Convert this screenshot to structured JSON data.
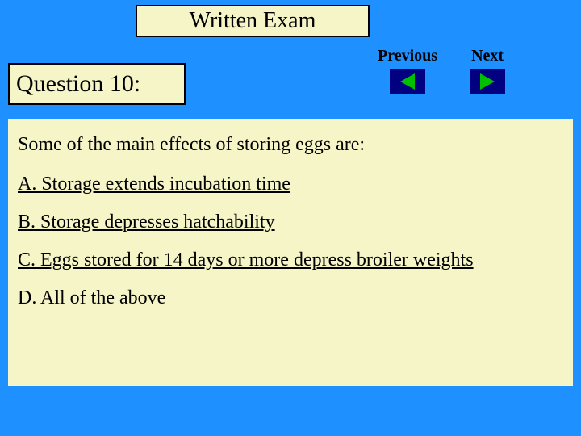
{
  "colors": {
    "background": "#1e90ff",
    "box_fill": "#f5f5c8",
    "box_border": "#000000",
    "nav_button_bg": "#000080",
    "arrow_color": "#00c000",
    "text_color": "#000000"
  },
  "title": "Written Exam",
  "question_label": "Question 10:",
  "nav": {
    "previous": "Previous",
    "next": "Next"
  },
  "question": {
    "prompt": "Some of the main effects of storing eggs are:",
    "options": [
      "A. Storage extends incubation time",
      "B. Storage depresses hatchability",
      "C. Eggs stored for 14 days or more depress broiler weights",
      "D. All of the above"
    ]
  },
  "typography": {
    "title_fontsize": 28,
    "question_label_fontsize": 30,
    "nav_label_fontsize": 20,
    "body_fontsize": 24,
    "font_family": "Times New Roman"
  }
}
